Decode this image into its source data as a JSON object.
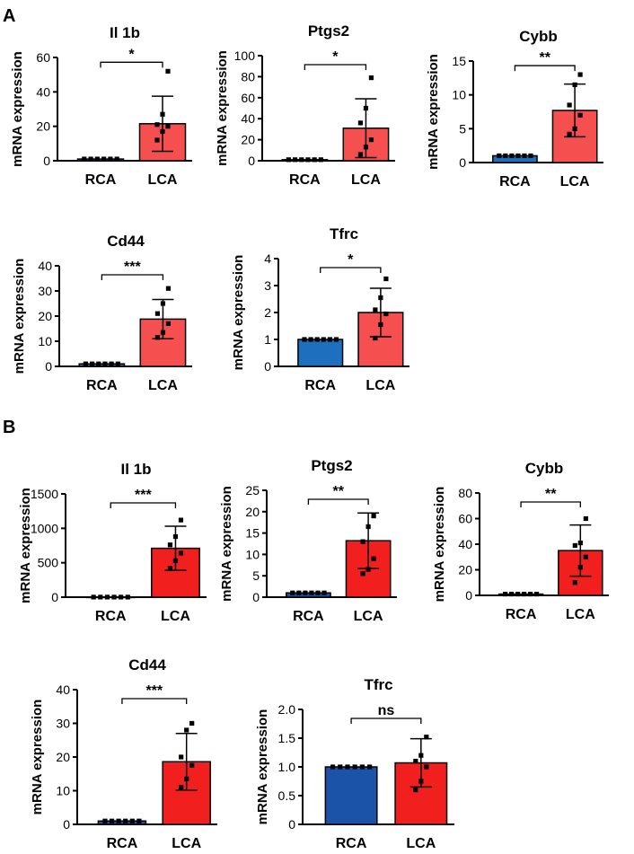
{
  "panel_labels": [
    "A",
    "B"
  ],
  "colors": {
    "rca_a": "#1f6fbf",
    "lca_a": "#f5504f",
    "rca_b": "#1b53a8",
    "lca_b": "#f21f1f"
  },
  "chart_data": [
    {
      "panel": "A",
      "type": "bar",
      "title": "Il 1b",
      "ylabel": "mRNA expression",
      "categories": [
        "RCA",
        "LCA"
      ],
      "values": [
        1,
        21.5
      ],
      "errors": [
        0,
        16
      ],
      "ylim": [
        0,
        60
      ],
      "yticks": [
        0,
        20,
        40,
        60
      ],
      "significance": "*",
      "points": [
        [
          1,
          1,
          1,
          1,
          1,
          1
        ],
        [
          12,
          17,
          20,
          21,
          27,
          52
        ]
      ]
    },
    {
      "panel": "A",
      "type": "bar",
      "title": "Ptgs2",
      "ylabel": "mRNA expression",
      "categories": [
        "RCA",
        "LCA"
      ],
      "values": [
        1,
        31
      ],
      "errors": [
        0,
        28
      ],
      "ylim": [
        0,
        100
      ],
      "yticks": [
        0,
        20,
        40,
        60,
        80,
        100
      ],
      "significance": "*",
      "points": [
        [
          1,
          1,
          1,
          1,
          1,
          1
        ],
        [
          6,
          13,
          20,
          36,
          50,
          79
        ]
      ]
    },
    {
      "panel": "A",
      "type": "bar",
      "title": "Cybb",
      "ylabel": "mRNA expression",
      "categories": [
        "RCA",
        "LCA"
      ],
      "values": [
        1,
        7.7
      ],
      "errors": [
        0,
        3.9
      ],
      "ylim": [
        0,
        15
      ],
      "yticks": [
        0,
        5,
        10,
        15
      ],
      "significance": "**",
      "points": [
        [
          1,
          1,
          1,
          1,
          1,
          1
        ],
        [
          4.2,
          5,
          7,
          8.5,
          11.5,
          13
        ]
      ]
    },
    {
      "panel": "A",
      "type": "bar",
      "title": "Cd44",
      "ylabel": "mRNA expression",
      "categories": [
        "RCA",
        "LCA"
      ],
      "values": [
        1,
        18.8
      ],
      "errors": [
        0,
        7.8
      ],
      "ylim": [
        0,
        40
      ],
      "yticks": [
        0,
        10,
        20,
        30,
        40
      ],
      "significance": "***",
      "points": [
        [
          1,
          1,
          1,
          1,
          1,
          1
        ],
        [
          11.5,
          13.5,
          17,
          21,
          25,
          31
        ]
      ]
    },
    {
      "panel": "A",
      "type": "bar",
      "title": "Tfrc",
      "ylabel": "mRNA expression",
      "categories": [
        "RCA",
        "LCA"
      ],
      "values": [
        1,
        2
      ],
      "errors": [
        0,
        0.9
      ],
      "ylim": [
        0,
        4
      ],
      "yticks": [
        0,
        1,
        2,
        3,
        4
      ],
      "significance": "*",
      "points": [
        [
          1,
          1,
          1,
          1,
          1,
          1
        ],
        [
          1.05,
          1.55,
          1.95,
          2.1,
          2.55,
          3.25
        ]
      ]
    },
    {
      "panel": "B",
      "type": "bar",
      "title": "Il 1b",
      "ylabel": "mRNA expression",
      "categories": [
        "RCA",
        "LCA"
      ],
      "values": [
        1,
        710
      ],
      "errors": [
        0,
        320
      ],
      "ylim": [
        0,
        1500
      ],
      "yticks": [
        0,
        500,
        1000,
        1500
      ],
      "significance": "***",
      "points": [
        [
          1,
          1,
          1,
          1,
          1,
          1
        ],
        [
          420,
          530,
          640,
          760,
          880,
          1120
        ]
      ]
    },
    {
      "panel": "B",
      "type": "bar",
      "title": "Ptgs2",
      "ylabel": "mRNA expression",
      "categories": [
        "RCA",
        "LCA"
      ],
      "values": [
        1,
        13.2
      ],
      "errors": [
        0,
        6.5
      ],
      "ylim": [
        0,
        25
      ],
      "yticks": [
        0,
        5,
        10,
        15,
        20,
        25
      ],
      "significance": "**",
      "points": [
        [
          1,
          1,
          1,
          1,
          1,
          1
        ],
        [
          5.5,
          6.5,
          9,
          13,
          16.5,
          19
        ]
      ]
    },
    {
      "panel": "B",
      "type": "bar",
      "title": "Cybb",
      "ylabel": "mRNA expression",
      "categories": [
        "RCA",
        "LCA"
      ],
      "values": [
        1,
        35
      ],
      "errors": [
        0,
        20
      ],
      "ylim": [
        0,
        80
      ],
      "yticks": [
        0,
        20,
        40,
        60,
        80
      ],
      "significance": "**",
      "points": [
        [
          1,
          1,
          1,
          1,
          1,
          1
        ],
        [
          10,
          22,
          30,
          39,
          41,
          60
        ]
      ]
    },
    {
      "panel": "B",
      "type": "bar",
      "title": "Cd44",
      "ylabel": "mRNA expression",
      "categories": [
        "RCA",
        "LCA"
      ],
      "values": [
        1,
        18.6
      ],
      "errors": [
        0,
        8.4
      ],
      "ylim": [
        0,
        40
      ],
      "yticks": [
        0,
        10,
        20,
        30,
        40
      ],
      "significance": "***",
      "points": [
        [
          1,
          1,
          1,
          1,
          1,
          1
        ],
        [
          11,
          13.5,
          17.5,
          20,
          28,
          30
        ]
      ]
    },
    {
      "panel": "B",
      "type": "bar",
      "title": "Tfrc",
      "ylabel": "mRNA expression",
      "categories": [
        "RCA",
        "LCA"
      ],
      "values": [
        1,
        1.07
      ],
      "errors": [
        0,
        0.42
      ],
      "ylim": [
        0,
        2.0
      ],
      "yticks": [
        "0",
        "0.5",
        "1.0",
        "1.5",
        "2.0"
      ],
      "significance": "ns",
      "points": [
        [
          1,
          1,
          1,
          1,
          1,
          1
        ],
        [
          0.6,
          0.75,
          1.0,
          1.1,
          1.2,
          1.52
        ]
      ]
    }
  ]
}
